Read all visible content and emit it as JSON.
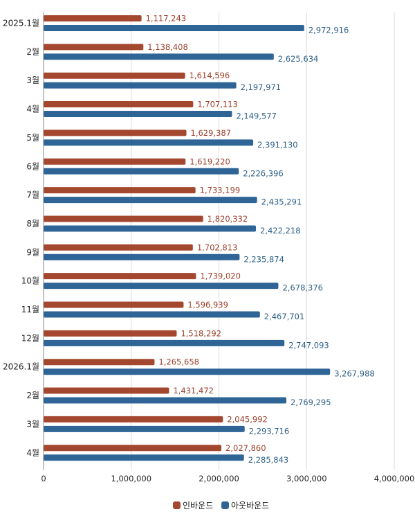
{
  "chart_data": {
    "type": "bar",
    "orientation": "horizontal",
    "categories": [
      "2025.1월",
      "2월",
      "3월",
      "4월",
      "5월",
      "6월",
      "7월",
      "8월",
      "9월",
      "10월",
      "11월",
      "12월",
      "2026.1월",
      "2월",
      "3월",
      "4월"
    ],
    "series": [
      {
        "name": "인바운드",
        "color": "#a4472f",
        "values": [
          1117243,
          1138408,
          1614596,
          1707113,
          1629387,
          1619220,
          1733199,
          1820332,
          1702813,
          1739020,
          1596939,
          1518292,
          1265658,
          1431472,
          2045992,
          2027860
        ]
      },
      {
        "name": "아웃바운드",
        "color": "#2f6496",
        "values": [
          2972916,
          2625634,
          2197971,
          2149577,
          2391130,
          2226396,
          2435291,
          2422218,
          2235874,
          2678376,
          2467701,
          2747093,
          3267988,
          2769295,
          2293716,
          2285843
        ]
      }
    ],
    "value_labels": {
      "인바운드": [
        "1,117,243",
        "1,138,408",
        "1,614,596",
        "1,707,113",
        "1,629,387",
        "1,619,220",
        "1,733,199",
        "1,820,332",
        "1,702,813",
        "1,739,020",
        "1,596,939",
        "1,518,292",
        "1,265,658",
        "1,431,472",
        "2,045,992",
        "2,027,860"
      ],
      "아웃바운드": [
        "2,972,916",
        "2,625,634",
        "2,197,971",
        "2,149,577",
        "2,391,130",
        "2,226,396",
        "2,435,291",
        "2,422,218",
        "2,235,874",
        "2,678,376",
        "2,467,701",
        "2,747,093",
        "3,267,988",
        "2,769,295",
        "2,293,716",
        "2,285,843"
      ]
    },
    "xlim": [
      0,
      4000000
    ],
    "xticks": [
      0,
      1000000,
      2000000,
      3000000,
      4000000
    ],
    "xtick_labels": [
      "0",
      "1,000,000",
      "2,000,000",
      "3,000,000",
      "4,000,000"
    ],
    "grid": "vertical",
    "legend_position": "bottom-center",
    "title": "",
    "xlabel": "",
    "ylabel": ""
  }
}
